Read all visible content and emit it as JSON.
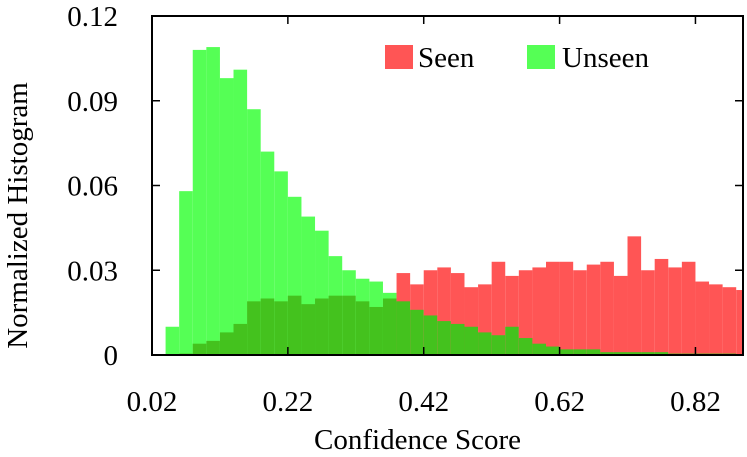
{
  "chart_data": {
    "type": "bar",
    "xlabel": "Confidence Score",
    "ylabel": "Normalized Histogram",
    "xlim": [
      0.02,
      0.89
    ],
    "ylim": [
      0,
      0.12
    ],
    "bin_width": 0.02,
    "xticks": [
      0.02,
      0.22,
      0.42,
      0.62,
      0.82
    ],
    "xtick_labels": [
      "0.02",
      "0.22",
      "0.42",
      "0.62",
      "0.82"
    ],
    "yticks": [
      0,
      0.03,
      0.06,
      0.09,
      0.12
    ],
    "ytick_labels": [
      "0",
      "0.03",
      "0.06",
      "0.09",
      "0.12"
    ],
    "legend_position": "top-right",
    "colors": {
      "Seen": "#ff5555",
      "Unseen": "#55ff55",
      "Overlap": "#44c21e"
    },
    "series": [
      {
        "name": "Seen",
        "x": [
          0.06,
          0.08,
          0.1,
          0.12,
          0.14,
          0.16,
          0.18,
          0.2,
          0.22,
          0.24,
          0.26,
          0.28,
          0.3,
          0.32,
          0.34,
          0.36,
          0.38,
          0.4,
          0.42,
          0.44,
          0.46,
          0.48,
          0.5,
          0.52,
          0.54,
          0.56,
          0.58,
          0.6,
          0.62,
          0.64,
          0.66,
          0.68,
          0.7,
          0.72,
          0.74,
          0.76,
          0.78,
          0.8,
          0.82,
          0.84,
          0.86,
          0.88
        ],
        "values": [
          0.0005,
          0.004,
          0.005,
          0.008,
          0.011,
          0.019,
          0.02,
          0.019,
          0.021,
          0.018,
          0.02,
          0.021,
          0.021,
          0.019,
          0.017,
          0.02,
          0.029,
          0.025,
          0.03,
          0.031,
          0.029,
          0.024,
          0.025,
          0.033,
          0.028,
          0.03,
          0.031,
          0.033,
          0.033,
          0.03,
          0.032,
          0.033,
          0.028,
          0.042,
          0.03,
          0.034,
          0.031,
          0.033,
          0.026,
          0.025,
          0.024,
          0.023
        ]
      },
      {
        "name": "Unseen",
        "x": [
          0.04,
          0.06,
          0.08,
          0.1,
          0.12,
          0.14,
          0.16,
          0.18,
          0.2,
          0.22,
          0.24,
          0.26,
          0.28,
          0.3,
          0.32,
          0.34,
          0.36,
          0.38,
          0.4,
          0.42,
          0.44,
          0.46,
          0.48,
          0.5,
          0.52,
          0.54,
          0.56,
          0.58,
          0.6,
          0.62,
          0.64,
          0.66,
          0.68,
          0.7,
          0.72,
          0.74,
          0.76,
          0.78,
          0.8,
          0.82,
          0.84,
          0.86
        ],
        "values": [
          0.01,
          0.058,
          0.108,
          0.109,
          0.098,
          0.101,
          0.087,
          0.072,
          0.065,
          0.056,
          0.049,
          0.044,
          0.035,
          0.03,
          0.027,
          0.026,
          0.022,
          0.019,
          0.016,
          0.014,
          0.012,
          0.011,
          0.01,
          0.008,
          0.007,
          0.01,
          0.006,
          0.004,
          0.003,
          0.002,
          0.002,
          0.002,
          0.001,
          0.001,
          0.001,
          0.001,
          0.001,
          0.0005,
          0.0005,
          0.0005,
          0.0005,
          0.0005
        ]
      }
    ]
  }
}
